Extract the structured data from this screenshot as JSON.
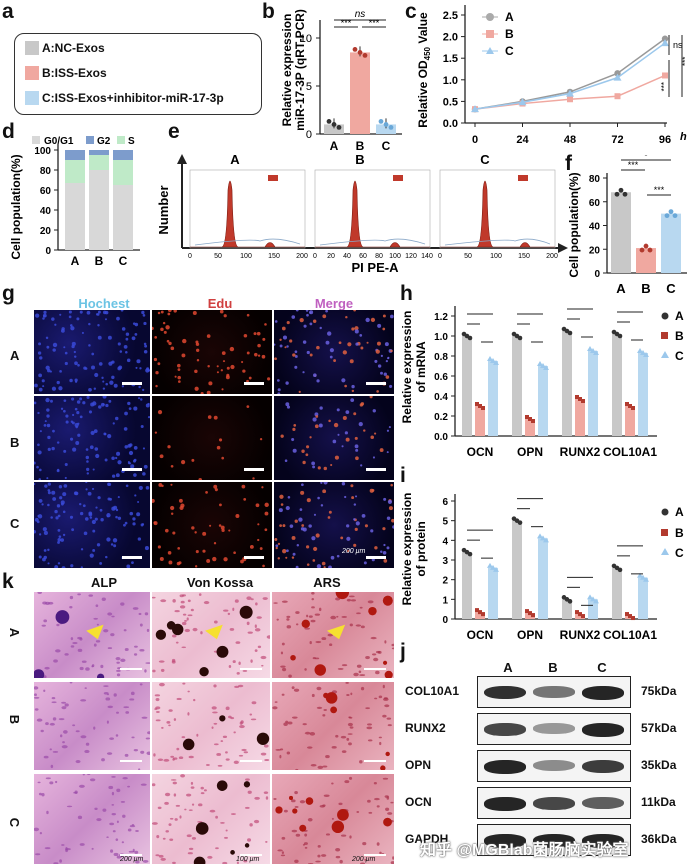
{
  "panels": {
    "a": {
      "label": "a",
      "legend": [
        "A:NC-Exos",
        "B:ISS-Exos",
        "C:ISS-Exos+inhibitor-miR-17-3p"
      ],
      "colors": [
        "#c8c8c8",
        "#f0a8a0",
        "#b8d8f0"
      ]
    },
    "b": {
      "label": "b",
      "ylabel": "Relative expression\nmiR-17-3P (qRT-PCR)",
      "sig_top": "ns",
      "sig_a": "***",
      "sig_b": "***",
      "ticks": [
        "0",
        "5",
        "10"
      ],
      "cats": [
        "A",
        "B",
        "C"
      ]
    },
    "c": {
      "label": "c",
      "ylabel": "Relative OD",
      "ylabel_sub": "450",
      "ylabel_end": " Value",
      "xticks": [
        "0",
        "24",
        "48",
        "72",
        "96"
      ],
      "xunit": "h",
      "yticks": [
        "0.0",
        "0.5",
        "1.0",
        "1.5",
        "2.0",
        "2.5"
      ],
      "legend": [
        "A",
        "B",
        "C"
      ],
      "sig": [
        "ns",
        "***",
        "***"
      ]
    },
    "d": {
      "label": "d",
      "ylabel": "Cell population(%)",
      "legend": [
        "G0/G1",
        "G2",
        "S"
      ],
      "yticks": [
        "0",
        "20",
        "40",
        "60",
        "80",
        "100"
      ],
      "cats": [
        "A",
        "B",
        "C"
      ]
    },
    "e": {
      "label": "e",
      "titles": [
        "A",
        "B",
        "C"
      ],
      "ylabel": "Number",
      "xlabel": "PI PE-A",
      "xticks": [
        "0",
        "50",
        "100",
        "150",
        "200"
      ],
      "xticks_b": [
        "0",
        "20",
        "40",
        "60",
        "80",
        "100",
        "120",
        "140"
      ]
    },
    "f": {
      "label": "f",
      "ylabel": "Cell population(%)",
      "yticks": [
        "0",
        "20",
        "40",
        "60",
        "80"
      ],
      "cats": [
        "A",
        "B",
        "C"
      ],
      "sig": [
        "***",
        "*",
        "***"
      ]
    },
    "g": {
      "label": "g",
      "cols": [
        "Hochest",
        "Edu",
        "Merge"
      ],
      "rows": [
        "A",
        "B",
        "C"
      ],
      "scale": "200 μm"
    },
    "h": {
      "label": "h",
      "ylabel": "Relative expression\nof mRNA",
      "yticks": [
        "0.0",
        "0.2",
        "0.4",
        "0.6",
        "0.8",
        "1.0",
        "1.2"
      ],
      "cats": [
        "OCN",
        "OPN",
        "RUNX2",
        "COL10A1"
      ],
      "legend": [
        "A",
        "B",
        "C"
      ]
    },
    "i": {
      "label": "i",
      "ylabel": "Relative expression\nof protein",
      "yticks": [
        "0",
        "1",
        "2",
        "3",
        "4",
        "5",
        "6"
      ],
      "cats": [
        "OCN",
        "OPN",
        "RUNX2",
        "COL10A1"
      ],
      "legend": [
        "A",
        "B",
        "C"
      ]
    },
    "j": {
      "label": "j",
      "cols": [
        "A",
        "B",
        "C"
      ],
      "rows": [
        {
          "name": "COL10A1",
          "kda": "75kDa"
        },
        {
          "name": "RUNX2",
          "kda": "57kDa"
        },
        {
          "name": "OPN",
          "kda": "35kDa"
        },
        {
          "name": "OCN",
          "kda": "11kDa"
        },
        {
          "name": "GAPDH",
          "kda": "36kDa"
        }
      ]
    },
    "k": {
      "label": "k",
      "cols": [
        "ALP",
        "Von Kossa",
        "ARS"
      ],
      "rows": [
        "A",
        "B",
        "C"
      ],
      "scales": [
        "200 μm",
        "100 μm",
        "200 μm"
      ]
    }
  },
  "watermark": "知乎 @MGBlab菌肠脑实验室",
  "chart_data": [
    {
      "type": "bar",
      "id": "b",
      "categories": [
        "A",
        "B",
        "C"
      ],
      "values": [
        1.0,
        8.5,
        1.0
      ],
      "ylim": [
        0,
        10
      ],
      "ylabel": "Relative expression miR-17-3P (qRT-PCR)"
    },
    {
      "type": "line",
      "id": "c",
      "x": [
        0,
        24,
        48,
        72,
        96
      ],
      "series": [
        {
          "name": "A",
          "values": [
            0.32,
            0.5,
            0.72,
            1.15,
            1.95
          ]
        },
        {
          "name": "B",
          "values": [
            0.32,
            0.45,
            0.55,
            0.62,
            1.1
          ]
        },
        {
          "name": "C",
          "values": [
            0.32,
            0.48,
            0.68,
            1.05,
            1.85
          ]
        }
      ],
      "ylim": [
        0,
        2.5
      ]
    },
    {
      "type": "bar",
      "id": "d",
      "categories": [
        "A",
        "B",
        "C"
      ],
      "series": [
        {
          "name": "G0/G1",
          "values": [
            67,
            80,
            65
          ]
        },
        {
          "name": "S",
          "values": [
            23,
            15,
            25
          ]
        },
        {
          "name": "G2",
          "values": [
            10,
            5,
            10
          ]
        }
      ],
      "ylim": [
        0,
        100
      ]
    },
    {
      "type": "bar",
      "id": "f",
      "categories": [
        "A",
        "B",
        "C"
      ],
      "values": [
        68,
        21,
        50
      ],
      "ylim": [
        0,
        80
      ]
    },
    {
      "type": "bar",
      "id": "h",
      "categories": [
        "OCN",
        "OPN",
        "RUNX2",
        "COL10A1"
      ],
      "series": [
        {
          "name": "A",
          "values": [
            1.0,
            1.0,
            1.05,
            1.02
          ]
        },
        {
          "name": "B",
          "values": [
            0.3,
            0.17,
            0.37,
            0.3
          ]
        },
        {
          "name": "C",
          "values": [
            0.75,
            0.7,
            0.85,
            0.83
          ]
        }
      ],
      "ylim": [
        0,
        1.2
      ]
    },
    {
      "type": "bar",
      "id": "i",
      "categories": [
        "OCN",
        "OPN",
        "RUNX2",
        "COL10A1"
      ],
      "series": [
        {
          "name": "A",
          "values": [
            3.4,
            5.0,
            1.0,
            2.6
          ]
        },
        {
          "name": "B",
          "values": [
            0.35,
            0.3,
            0.25,
            0.15
          ]
        },
        {
          "name": "C",
          "values": [
            2.6,
            4.1,
            1.0,
            2.1
          ]
        }
      ],
      "ylim": [
        0,
        6
      ]
    }
  ]
}
